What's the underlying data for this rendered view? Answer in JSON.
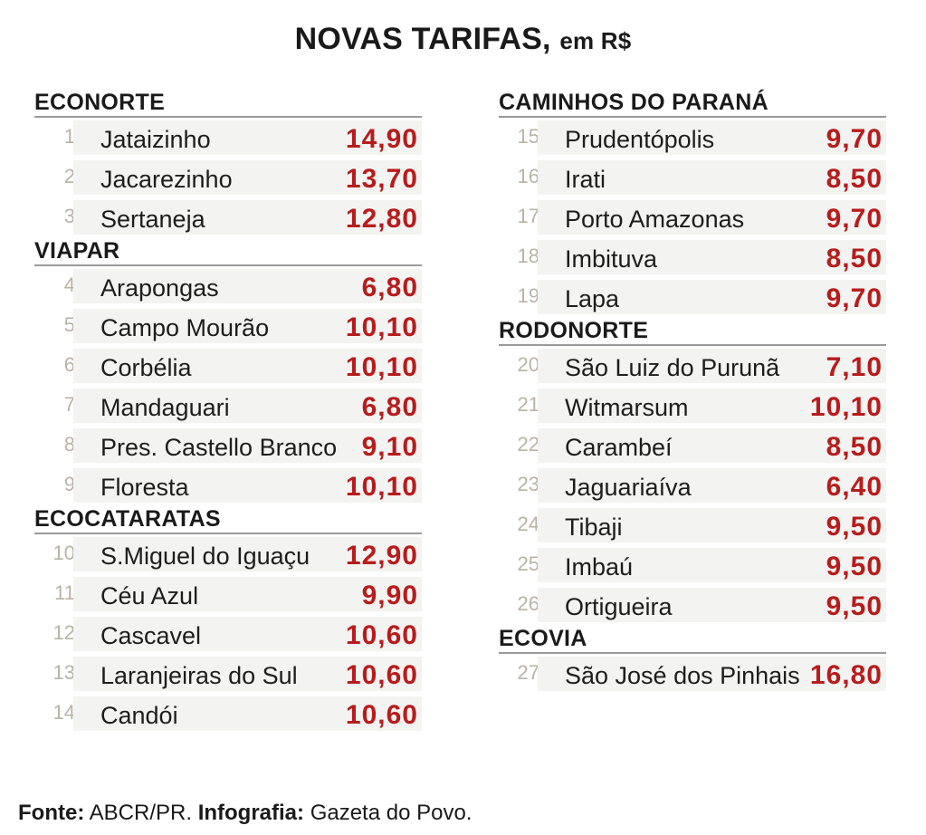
{
  "title": {
    "main": "NOVAS TARIFAS,",
    "unit": "em R$"
  },
  "columns": [
    {
      "groups": [
        {
          "name": "ECONORTE",
          "items": [
            {
              "num": "1",
              "city": "Jataizinho",
              "price": "14,90"
            },
            {
              "num": "2",
              "city": "Jacarezinho",
              "price": "13,70"
            },
            {
              "num": "3",
              "city": "Sertaneja",
              "price": "12,80"
            }
          ]
        },
        {
          "name": "VIAPAR",
          "items": [
            {
              "num": "4",
              "city": "Arapongas",
              "price": "6,80"
            },
            {
              "num": "5",
              "city": "Campo Mourão",
              "price": "10,10"
            },
            {
              "num": "6",
              "city": "Corbélia",
              "price": "10,10"
            },
            {
              "num": "7",
              "city": "Mandaguari",
              "price": "6,80"
            },
            {
              "num": "8",
              "city": "Pres. Castello Branco",
              "price": "9,10"
            },
            {
              "num": "9",
              "city": "Floresta",
              "price": "10,10"
            }
          ]
        },
        {
          "name": "ECOCATARATAS",
          "items": [
            {
              "num": "10",
              "city": "S.Miguel do Iguaçu",
              "price": "12,90"
            },
            {
              "num": "11",
              "city": "Céu Azul",
              "price": "9,90"
            },
            {
              "num": "12",
              "city": "Cascavel",
              "price": "10,60"
            },
            {
              "num": "13",
              "city": "Laranjeiras do Sul",
              "price": "10,60"
            },
            {
              "num": "14",
              "city": "Candói",
              "price": "10,60"
            }
          ]
        }
      ]
    },
    {
      "groups": [
        {
          "name": "CAMINHOS DO PARANÁ",
          "items": [
            {
              "num": "15",
              "city": "Prudentópolis",
              "price": "9,70"
            },
            {
              "num": "16",
              "city": "Irati",
              "price": "8,50"
            },
            {
              "num": "17",
              "city": "Porto Amazonas",
              "price": "9,70"
            },
            {
              "num": "18",
              "city": "Imbituva",
              "price": "8,50"
            },
            {
              "num": "19",
              "city": "Lapa",
              "price": "9,70"
            }
          ]
        },
        {
          "name": "RODONORTE",
          "items": [
            {
              "num": "20",
              "city": "São Luiz do Purunã",
              "price": "7,10"
            },
            {
              "num": "21",
              "city": "Witmarsum",
              "price": "10,10"
            },
            {
              "num": "22",
              "city": "Carambeí",
              "price": "8,50"
            },
            {
              "num": "23",
              "city": "Jaguariaíva",
              "price": "6,40"
            },
            {
              "num": "24",
              "city": "Tibaji",
              "price": "9,50"
            },
            {
              "num": "25",
              "city": "Imbaú",
              "price": "9,50"
            },
            {
              "num": "26",
              "city": "Ortigueira",
              "price": "9,50"
            }
          ]
        },
        {
          "name": "ECOVIA",
          "items": [
            {
              "num": "27",
              "city": "São José dos Pinhais",
              "price": "16,80"
            }
          ]
        }
      ]
    }
  ],
  "footer": {
    "source_label": "Fonte:",
    "source_value": "ABCR/PR.",
    "credit_label": "Infografia:",
    "credit_value": "Gazeta do Povo."
  },
  "colors": {
    "price": "#b71c1c",
    "number": "#b9b3a6",
    "rule": "#9a9a9a",
    "cell_bg": "#f3f3f1"
  }
}
